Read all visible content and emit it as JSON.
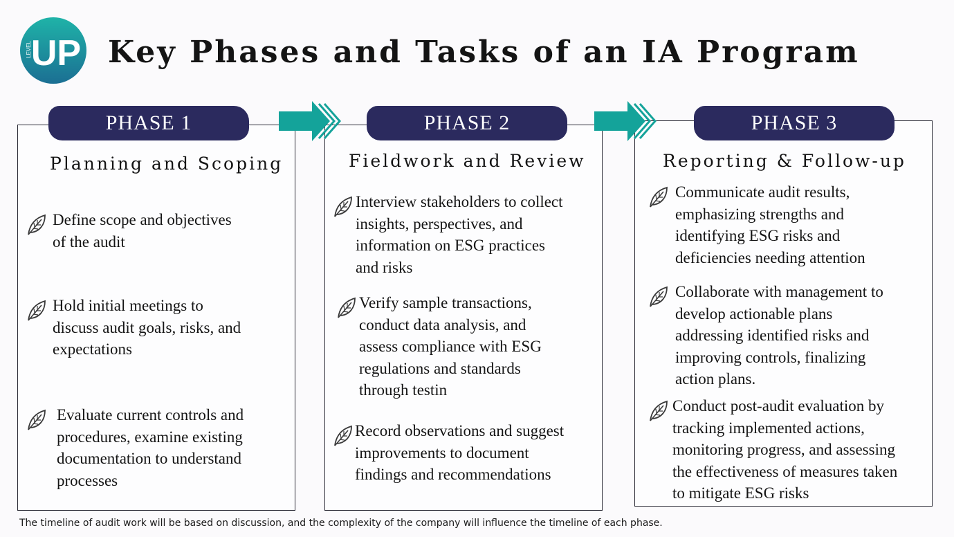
{
  "header": {
    "logo_text": "UP",
    "logo_small_text": "LEVEL",
    "title": "Key Phases and Tasks of an IA Program"
  },
  "colors": {
    "pill": "#2b2a5e",
    "arrow": "#14a39a",
    "logo_top": "#1fb3a8",
    "logo_bottom": "#1b6f93"
  },
  "icons": {
    "task_bullet": "leaf-icon",
    "connector": "double-chevron-arrow-icon"
  },
  "phases": [
    {
      "label": "PHASE 1",
      "title": "Planning and Scoping",
      "tasks": [
        {
          "lines": [
            "Define scope and objectives",
            "of the audit"
          ]
        },
        {
          "lines": [
            "Hold initial meetings to",
            "discuss audit goals, risks, and",
            "expectations"
          ]
        },
        {
          "lines": [
            "Evaluate current controls and",
            "procedures, examine existing",
            "documentation to understand",
            "processes"
          ]
        }
      ]
    },
    {
      "label": "PHASE 2",
      "title": "Fieldwork and Review",
      "tasks": [
        {
          "lines": [
            "Interview stakeholders to collect",
            "insights, perspectives, and",
            "information on ESG practices",
            "and risks"
          ]
        },
        {
          "lines": [
            "Verify sample transactions,",
            "conduct data analysis, and",
            "assess compliance with ESG",
            "regulations and standards",
            "through testin"
          ]
        },
        {
          "lines": [
            "Record observations and suggest",
            "improvements to document",
            "findings and recommendations"
          ]
        }
      ]
    },
    {
      "label": "PHASE 3",
      "title": "Reporting & Follow-up",
      "tasks": [
        {
          "lines": [
            "Communicate audit results,",
            "emphasizing strengths and",
            "identifying ESG risks and",
            "deficiencies needing attention"
          ]
        },
        {
          "lines": [
            "Collaborate with management to",
            "develop actionable plans",
            "addressing identified risks and",
            "improving controls, finalizing",
            "action plans."
          ]
        },
        {
          "lines": [
            "Conduct post-audit evaluation by",
            "tracking implemented actions,",
            "monitoring progress, and assessing",
            "the effectiveness of measures taken",
            "to mitigate ESG risks"
          ]
        }
      ]
    }
  ],
  "footnote": "The timeline of audit work will be based on discussion, and the complexity of the company will influence the timeline of each phase."
}
